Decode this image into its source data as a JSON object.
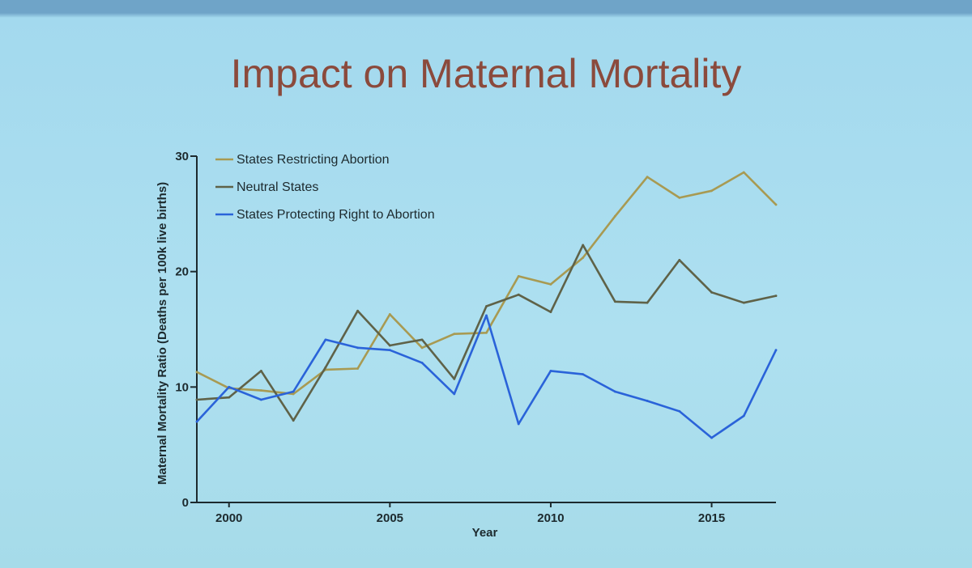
{
  "slide": {
    "title": "Impact on Maternal Mortality"
  },
  "chart_data": {
    "type": "line",
    "title": "Impact on Maternal Mortality",
    "xlabel": "Year",
    "ylabel": "Maternal Mortality Ratio (Deaths per 100k live births)",
    "xlim": [
      1999,
      2017
    ],
    "ylim": [
      0,
      30
    ],
    "x_ticks": [
      2000,
      2005,
      2010,
      2015
    ],
    "y_ticks": [
      0,
      10,
      20,
      30
    ],
    "legend_position": "top-left",
    "grid": false,
    "x": [
      1999,
      2000,
      2001,
      2002,
      2003,
      2004,
      2005,
      2006,
      2007,
      2008,
      2009,
      2010,
      2011,
      2012,
      2013,
      2014,
      2015,
      2016,
      2017
    ],
    "series": [
      {
        "name": "States Restricting Abortion",
        "color": "#a89a52",
        "values": [
          11.3,
          9.9,
          9.7,
          9.4,
          11.5,
          11.6,
          16.3,
          13.4,
          14.6,
          14.7,
          19.6,
          18.9,
          21.2,
          24.8,
          28.2,
          26.4,
          27.0,
          28.6,
          25.8
        ]
      },
      {
        "name": "Neutral States",
        "color": "#5f6248",
        "values": [
          8.9,
          9.1,
          11.4,
          7.1,
          11.7,
          16.6,
          13.6,
          14.1,
          10.7,
          17.0,
          18.0,
          16.5,
          22.3,
          17.4,
          17.3,
          21.0,
          18.2,
          17.3,
          17.9
        ]
      },
      {
        "name": "States Protecting Right to Abortion",
        "color": "#2a63d9",
        "values": [
          7.0,
          10.0,
          8.9,
          9.6,
          14.1,
          13.4,
          13.2,
          12.1,
          9.4,
          16.2,
          6.8,
          11.4,
          11.1,
          9.6,
          8.8,
          7.9,
          5.6,
          7.5,
          13.2
        ]
      }
    ]
  }
}
